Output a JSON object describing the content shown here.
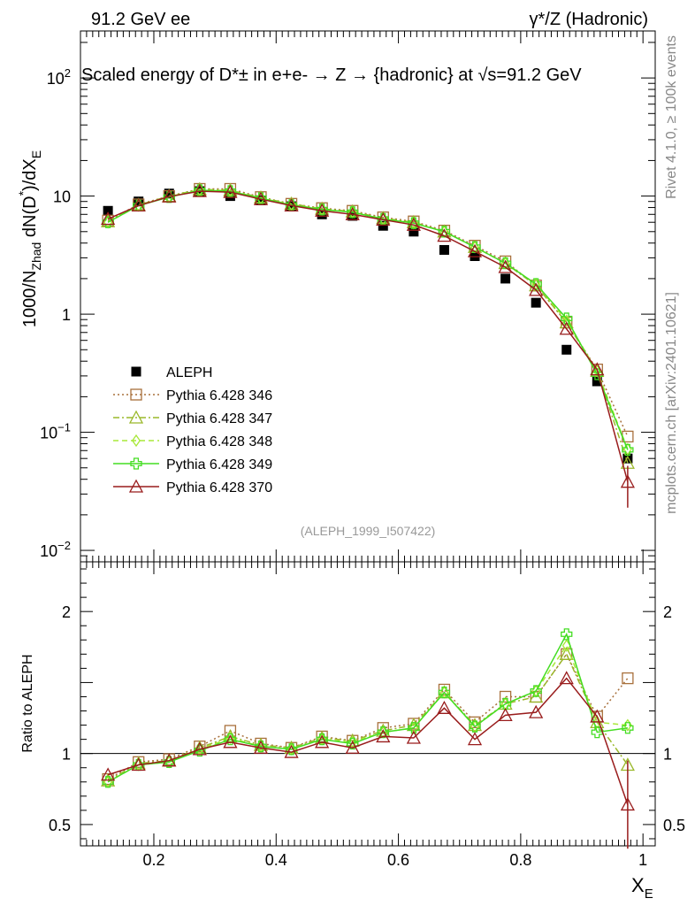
{
  "header": {
    "left": "91.2 GeV ee",
    "right": "γ*/Z (Hadronic)",
    "title": "Scaled energy of D*± in e+e- → Z → {hadronic} at √s=91.2 GeV"
  },
  "side_labels": {
    "rivet": "Rivet 4.1.0, ≥ 100k events",
    "mcplots": "mcplots.cern.ch [arXiv:2401.10621]"
  },
  "analysis_id": "(ALEPH_1999_I507422)",
  "chart_data": [
    {
      "type": "scatter",
      "panel": "main",
      "title": "Scaled energy of D*± in e+e- → Z → {hadronic} at √s=91.2 GeV",
      "xlabel": "X_E",
      "ylabel": "1000/N_Zhad dN(D*)/dX_E",
      "yscale": "log",
      "xlim": [
        0.08,
        1.02
      ],
      "ylim": [
        0.008,
        250
      ],
      "y_tick_labels": [
        "10^-2",
        "10^-1",
        "1",
        "10",
        "10^2"
      ],
      "legend_position": "middle-left",
      "x": [
        0.125,
        0.175,
        0.225,
        0.275,
        0.325,
        0.375,
        0.425,
        0.475,
        0.525,
        0.575,
        0.625,
        0.675,
        0.725,
        0.775,
        0.825,
        0.875,
        0.925,
        0.975
      ],
      "series": [
        {
          "name": "ALEPH",
          "color": "#000000",
          "marker": "filled-square",
          "line": "none",
          "values": [
            7.5,
            9.0,
            10.5,
            11.0,
            10.0,
            9.2,
            8.2,
            7.0,
            6.8,
            5.6,
            5.0,
            3.5,
            3.1,
            2.0,
            1.25,
            0.5,
            0.27,
            0.06
          ]
        },
        {
          "name": "Pythia 6.428 346",
          "color": "#a8703c",
          "marker": "open-square",
          "line": "dotted",
          "values": [
            6.2,
            8.5,
            10.0,
            11.5,
            11.5,
            9.8,
            8.6,
            7.9,
            7.5,
            6.6,
            6.1,
            5.1,
            3.8,
            2.8,
            1.75,
            0.85,
            0.34,
            0.092
          ]
        },
        {
          "name": "Pythia 6.428 347",
          "color": "#9ab82a",
          "marker": "open-triangle",
          "line": "dashdot",
          "values": [
            6.1,
            8.4,
            10.0,
            11.4,
            11.2,
            9.7,
            8.6,
            7.8,
            7.4,
            6.5,
            6.0,
            5.0,
            3.7,
            2.7,
            1.75,
            0.85,
            0.33,
            0.055
          ]
        },
        {
          "name": "Pythia 6.428 348",
          "color": "#a8e838",
          "marker": "open-diamond",
          "line": "dashed",
          "values": [
            6.0,
            8.3,
            9.9,
            11.3,
            11.1,
            9.6,
            8.5,
            7.7,
            7.3,
            6.4,
            5.9,
            5.0,
            3.7,
            2.7,
            1.8,
            0.88,
            0.33,
            0.072
          ]
        },
        {
          "name": "Pythia 6.428 349",
          "color": "#44dd22",
          "marker": "open-cross",
          "line": "solid",
          "values": [
            6.0,
            8.3,
            9.8,
            11.2,
            11.0,
            9.6,
            8.4,
            7.7,
            7.3,
            6.4,
            5.9,
            5.0,
            3.7,
            2.7,
            1.8,
            0.92,
            0.31,
            0.071
          ]
        },
        {
          "name": "Pythia 6.428 370",
          "color": "#991c1c",
          "marker": "open-triangle",
          "line": "solid",
          "values": [
            6.4,
            8.3,
            9.9,
            11.0,
            10.8,
            9.4,
            8.3,
            7.5,
            7.0,
            6.3,
            5.7,
            4.6,
            3.4,
            2.5,
            1.6,
            0.75,
            0.34,
            0.038
          ],
          "error_low": [
            null,
            null,
            null,
            null,
            null,
            null,
            null,
            null,
            null,
            null,
            null,
            null,
            null,
            null,
            null,
            null,
            null,
            0.023
          ],
          "error_high": [
            null,
            null,
            null,
            null,
            null,
            null,
            null,
            null,
            null,
            null,
            null,
            null,
            null,
            null,
            null,
            null,
            null,
            0.052
          ]
        }
      ]
    },
    {
      "type": "line",
      "panel": "ratio",
      "xlabel": "X_E",
      "ylabel": "Ratio to ALEPH",
      "xlim": [
        0.08,
        1.02
      ],
      "ylim": [
        0.35,
        2.35
      ],
      "x_tick_labels": [
        "0.2",
        "0.4",
        "0.6",
        "0.8",
        "1"
      ],
      "y_tick_labels": [
        "0.5",
        "1",
        "2"
      ],
      "reference_line": 1,
      "x": [
        0.125,
        0.175,
        0.225,
        0.275,
        0.325,
        0.375,
        0.425,
        0.475,
        0.525,
        0.575,
        0.625,
        0.675,
        0.725,
        0.775,
        0.825,
        0.875,
        0.925,
        0.975
      ],
      "series": [
        {
          "name": "Pythia 6.428 346",
          "color": "#a8703c",
          "marker": "open-square",
          "line": "dotted",
          "values": [
            0.82,
            0.94,
            0.96,
            1.05,
            1.16,
            1.07,
            1.04,
            1.12,
            1.09,
            1.18,
            1.21,
            1.45,
            1.22,
            1.4,
            1.4,
            1.7,
            1.26,
            1.53
          ]
        },
        {
          "name": "Pythia 6.428 347",
          "color": "#9ab82a",
          "marker": "open-triangle",
          "line": "dashdot",
          "values": [
            0.81,
            0.93,
            0.95,
            1.04,
            1.12,
            1.06,
            1.04,
            1.11,
            1.09,
            1.16,
            1.2,
            1.43,
            1.2,
            1.35,
            1.4,
            1.7,
            1.22,
            0.92
          ]
        },
        {
          "name": "Pythia 6.428 348",
          "color": "#a8e838",
          "marker": "open-diamond",
          "line": "dashed",
          "values": [
            0.8,
            0.92,
            0.94,
            1.03,
            1.11,
            1.05,
            1.03,
            1.1,
            1.08,
            1.15,
            1.18,
            1.43,
            1.19,
            1.35,
            1.44,
            1.76,
            1.22,
            1.2
          ]
        },
        {
          "name": "Pythia 6.428 349",
          "color": "#44dd22",
          "marker": "open-cross",
          "line": "solid",
          "values": [
            0.8,
            0.92,
            0.94,
            1.02,
            1.1,
            1.05,
            1.03,
            1.1,
            1.07,
            1.15,
            1.18,
            1.43,
            1.19,
            1.35,
            1.44,
            1.84,
            1.15,
            1.18
          ]
        },
        {
          "name": "Pythia 6.428 370",
          "color": "#991c1c",
          "marker": "open-triangle",
          "line": "solid",
          "values": [
            0.85,
            0.92,
            0.95,
            1.03,
            1.08,
            1.04,
            1.01,
            1.08,
            1.04,
            1.12,
            1.11,
            1.32,
            1.1,
            1.27,
            1.29,
            1.53,
            1.26,
            0.64
          ],
          "error_low": [
            null,
            null,
            null,
            null,
            null,
            null,
            null,
            null,
            null,
            null,
            null,
            null,
            null,
            null,
            null,
            null,
            null,
            0.33
          ],
          "error_high": [
            null,
            null,
            null,
            null,
            null,
            null,
            null,
            null,
            null,
            null,
            null,
            null,
            null,
            null,
            null,
            null,
            null,
            0.95
          ]
        }
      ]
    }
  ]
}
